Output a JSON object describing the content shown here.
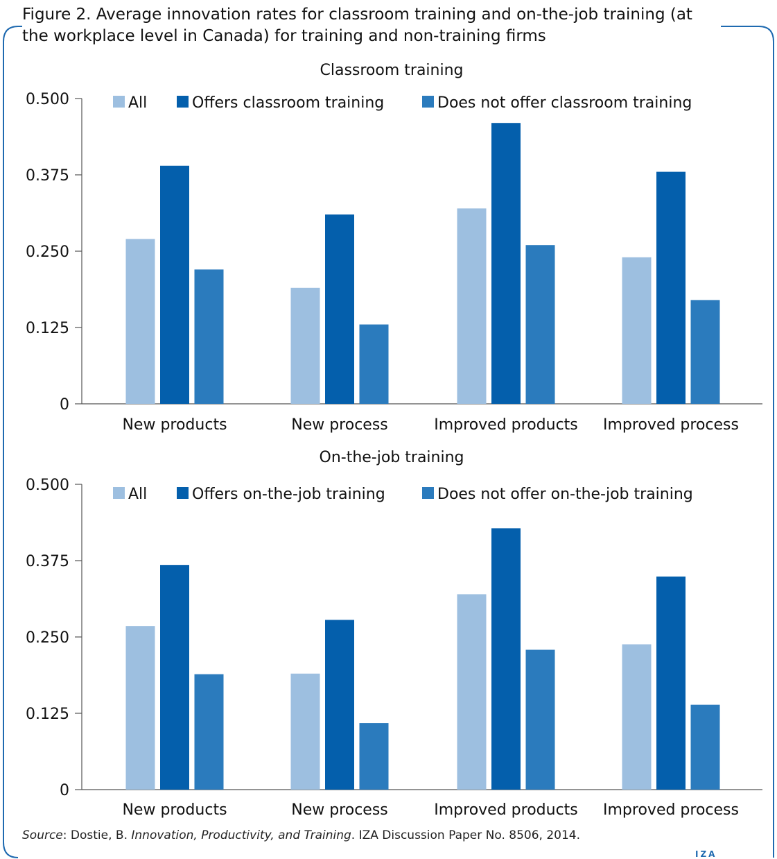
{
  "figure": {
    "title": "Figure 2. Average innovation rates for classroom training and on-the-job training (at the workplace level in Canada) for training and non-training firms",
    "source_label": "Source",
    "source_text_1": ": Dostie, B. ",
    "source_title": "Innovation, Productivity, and Training",
    "source_text_2": ". IZA Discussion Paper No. 8506, 2014.",
    "logo_text": "IZA",
    "frame_color": "#1f6ab0"
  },
  "colors": {
    "all": "#9dbfe0",
    "offers": "#045fac",
    "does_not_offer": "#2b7bbd",
    "axis": "#555555"
  },
  "chart_data": [
    {
      "type": "bar",
      "title": "Classroom training",
      "categories": [
        "New products",
        "New process",
        "Improved products",
        "Improved process"
      ],
      "series": [
        {
          "name": "All",
          "values": [
            0.27,
            0.19,
            0.32,
            0.24
          ]
        },
        {
          "name": "Offers classroom training",
          "values": [
            0.39,
            0.31,
            0.46,
            0.38
          ]
        },
        {
          "name": "Does not offer classroom training",
          "values": [
            0.22,
            0.13,
            0.26,
            0.17
          ]
        }
      ],
      "yticks": [
        "0",
        "0.125",
        "0.250",
        "0.375",
        "0.500"
      ],
      "ylim": [
        0,
        0.5
      ],
      "xlabel": "",
      "ylabel": "",
      "legend": "top",
      "grid": false
    },
    {
      "type": "bar",
      "title": "On-the-job training",
      "categories": [
        "New products",
        "New process",
        "Improved products",
        "Improved process"
      ],
      "series": [
        {
          "name": "All",
          "values": [
            0.268,
            0.19,
            0.32,
            0.238
          ]
        },
        {
          "name": "Offers on-the-job training",
          "values": [
            0.368,
            0.278,
            0.428,
            0.349
          ]
        },
        {
          "name": "Does not offer on-the-job training",
          "values": [
            0.189,
            0.109,
            0.229,
            0.139
          ]
        }
      ],
      "yticks": [
        "0",
        "0.125",
        "0.250",
        "0.375",
        "0.500"
      ],
      "ylim": [
        0,
        0.5
      ],
      "xlabel": "",
      "ylabel": "",
      "legend": "top",
      "grid": false
    }
  ]
}
